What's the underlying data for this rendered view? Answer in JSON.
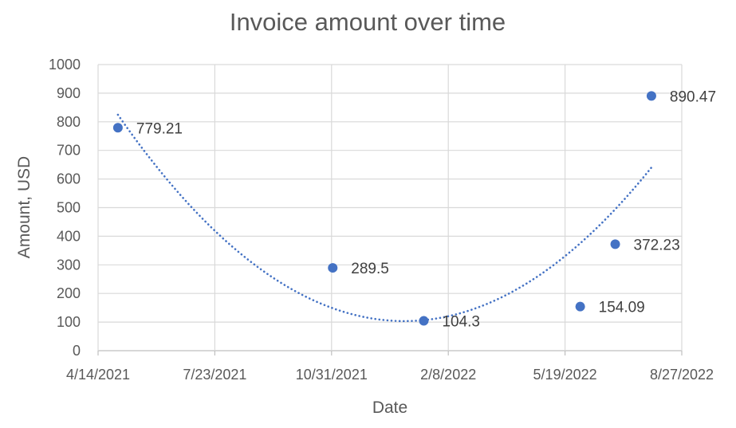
{
  "chart_data": {
    "type": "scatter",
    "title": "Invoice amount over time",
    "xlabel": "Date",
    "ylabel": "Amount, USD",
    "x_axis_type": "date",
    "xlim": [
      "2021-04-14",
      "2022-08-27"
    ],
    "x_ticks": [
      "4/14/2021",
      "7/23/2021",
      "10/31/2021",
      "2/8/2022",
      "5/19/2022",
      "8/27/2022"
    ],
    "ylim": [
      0,
      1000
    ],
    "y_ticks": [
      "0",
      "100",
      "200",
      "300",
      "400",
      "500",
      "600",
      "700",
      "800",
      "900",
      "1000"
    ],
    "grid": "major-both",
    "legend": "none",
    "marker_color": "#4472c4",
    "trendline": {
      "type": "polynomial",
      "order": 2,
      "style": "dotted",
      "color": "#4472c4"
    },
    "points": [
      {
        "x": "2021-05-01",
        "y": 779.21,
        "label": "779.21"
      },
      {
        "x": "2021-11-01",
        "y": 289.5,
        "label": "289.5"
      },
      {
        "x": "2022-01-18",
        "y": 104.3,
        "label": "104.3"
      },
      {
        "x": "2022-06-01",
        "y": 154.09,
        "label": "154.09"
      },
      {
        "x": "2022-07-01",
        "y": 372.23,
        "label": "372.23"
      },
      {
        "x": "2022-08-01",
        "y": 890.47,
        "label": "890.47"
      }
    ]
  }
}
